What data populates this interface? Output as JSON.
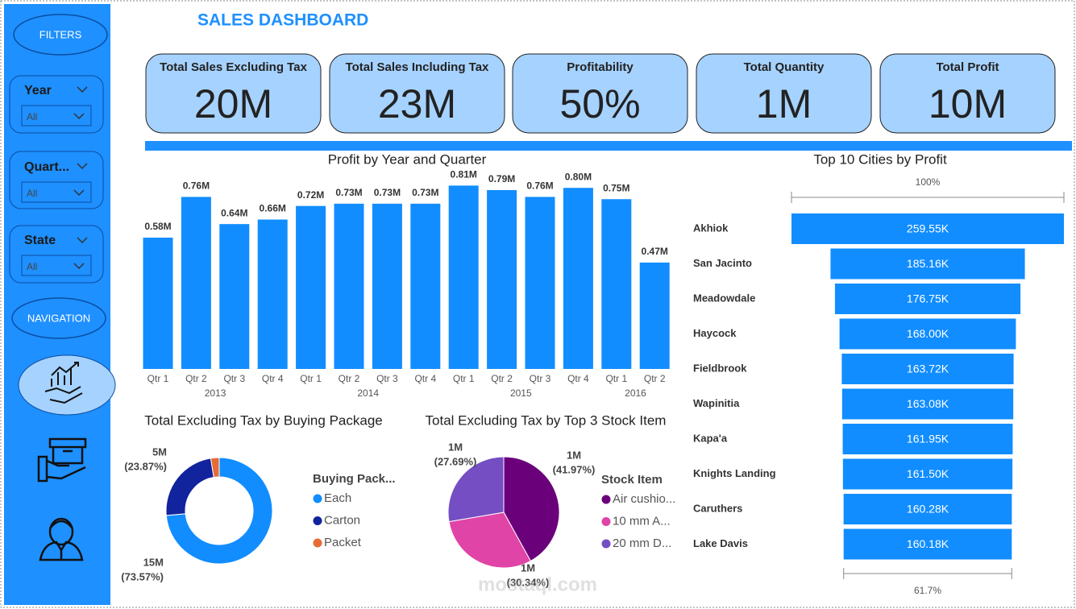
{
  "header": {
    "title": "SALES DASHBOARD"
  },
  "sidebar": {
    "filters_button": "FILTERS",
    "slicers": [
      {
        "label": "Year",
        "value": "All"
      },
      {
        "label": "Quart...",
        "value": "All"
      },
      {
        "label": "State",
        "value": "All"
      }
    ],
    "navigation_button": "NAVIGATION"
  },
  "kpis": [
    {
      "label": "Total Sales Excluding Tax",
      "value": "20M"
    },
    {
      "label": "Total Sales Including Tax",
      "value": "23M"
    },
    {
      "label": "Profitability",
      "value": "50%"
    },
    {
      "label": "Total Quantity",
      "value": "1M"
    },
    {
      "label": "Total Profit",
      "value": "10M"
    }
  ],
  "watermark": "mostaql.com",
  "chart_data": [
    {
      "type": "bar",
      "title": "Profit by Year and Quarter",
      "categories": [
        "Qtr 1",
        "Qtr 2",
        "Qtr 3",
        "Qtr 4",
        "Qtr 1",
        "Qtr 2",
        "Qtr 3",
        "Qtr 4",
        "Qtr 1",
        "Qtr 2",
        "Qtr 3",
        "Qtr 4",
        "Qtr 1",
        "Qtr 2"
      ],
      "x_groups": [
        {
          "label": "2013",
          "count": 4
        },
        {
          "label": "2014",
          "count": 4
        },
        {
          "label": "2015",
          "count": 4
        },
        {
          "label": "2016",
          "count": 2
        }
      ],
      "values": [
        0.58,
        0.76,
        0.64,
        0.66,
        0.72,
        0.73,
        0.73,
        0.73,
        0.81,
        0.79,
        0.76,
        0.8,
        0.75,
        0.47
      ],
      "value_labels": [
        "0.58M",
        "0.76M",
        "0.64M",
        "0.66M",
        "0.72M",
        "0.73M",
        "0.73M",
        "0.73M",
        "0.81M",
        "0.79M",
        "0.76M",
        "0.80M",
        "0.75M",
        "0.47M"
      ],
      "color": "#118DFF"
    },
    {
      "type": "funnel",
      "title": "Top 10 Cities by Profit",
      "categories": [
        "Akhiok",
        "San Jacinto",
        "Meadowdale",
        "Haycock",
        "Fieldbrook",
        "Wapinitia",
        "Kapa'a",
        "Knights Landing",
        "Caruthers",
        "Lake Davis"
      ],
      "values": [
        259550,
        185160,
        176750,
        168000,
        163720,
        163080,
        161950,
        161500,
        160280,
        160180
      ],
      "value_labels": [
        "259.55K",
        "185.16K",
        "176.75K",
        "168.00K",
        "163.72K",
        "163.08K",
        "161.95K",
        "161.50K",
        "160.28K",
        "160.18K"
      ],
      "color": "#118DFF",
      "top_label": {
        "value": 100,
        "label": "100%"
      },
      "bottom_label": {
        "value": 61.7,
        "label": "61.7%"
      }
    },
    {
      "type": "donut",
      "title": "Total Excluding Tax by Buying Package",
      "legend_title": "Buying Pack...",
      "categories": [
        "Each",
        "Carton",
        "Packet"
      ],
      "values": [
        73.57,
        23.87,
        2.56
      ],
      "value_labels": [
        [
          "15M",
          "(73.57%)"
        ],
        [
          "5M",
          "(23.87%)"
        ],
        null
      ],
      "colors": [
        "#118DFF",
        "#12239E",
        "#E66C37"
      ]
    },
    {
      "type": "pie",
      "title": "Total Excluding Tax by Top 3 Stock Item",
      "legend_title": "Stock Item",
      "categories": [
        "Air cushio...",
        "10 mm A...",
        "20 mm D..."
      ],
      "values": [
        41.97,
        30.34,
        27.69
      ],
      "value_labels": [
        [
          "1M",
          "(41.97%)"
        ],
        [
          "1M",
          "(30.34%)"
        ],
        [
          "1M",
          "(27.69%)"
        ]
      ],
      "colors": [
        "#6B007B",
        "#E044A7",
        "#744EC2"
      ]
    }
  ]
}
